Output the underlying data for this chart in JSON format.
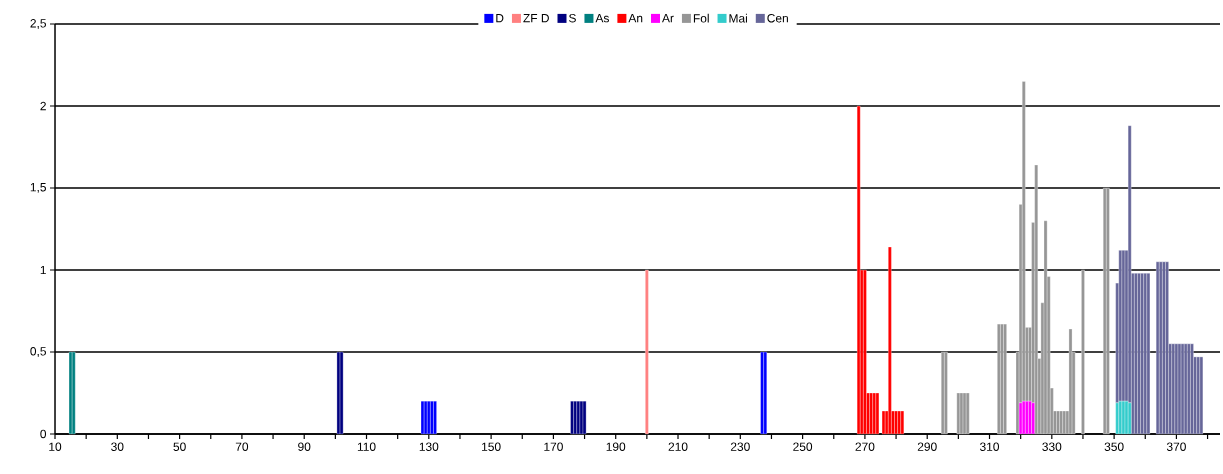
{
  "chart_data": {
    "type": "bar",
    "stacked": true,
    "grid": "y",
    "legend": "top",
    "xlim": [
      10,
      384
    ],
    "ylim": [
      0,
      2.5
    ],
    "xticks": [
      10,
      {
        "value": 20,
        "label": null
      },
      30,
      {
        "value": 40,
        "label": null
      },
      50,
      {
        "value": 60,
        "label": null
      },
      70,
      {
        "value": 80,
        "label": null
      },
      90,
      {
        "value": 100,
        "label": null
      },
      110,
      {
        "value": 120,
        "label": null
      },
      130,
      {
        "value": 140,
        "label": null
      },
      150,
      {
        "value": 160,
        "label": null
      },
      170,
      {
        "value": 180,
        "label": null
      },
      190,
      {
        "value": 200,
        "label": null
      },
      210,
      {
        "value": 220,
        "label": null
      },
      230,
      {
        "value": 240,
        "label": null
      },
      250,
      {
        "value": 260,
        "label": null
      },
      270,
      {
        "value": 280,
        "label": null
      },
      290,
      {
        "value": 300,
        "label": null
      },
      310,
      {
        "value": 320,
        "label": null
      },
      330,
      {
        "value": 340,
        "label": null
      },
      350,
      {
        "value": 360,
        "label": null
      },
      370,
      {
        "value": 380,
        "label": null
      }
    ],
    "yticks": [
      0,
      {
        "value": 0.5,
        "label": "0,5"
      },
      1,
      {
        "value": 1.5,
        "label": "1,5"
      },
      2,
      {
        "value": 2.5,
        "label": "2,5"
      }
    ],
    "x": [
      15,
      16,
      101,
      102,
      128,
      129,
      130,
      131,
      132,
      176,
      177,
      178,
      179,
      180,
      200,
      237,
      238,
      268,
      269,
      270,
      271,
      272,
      273,
      274,
      276,
      277,
      278,
      279,
      280,
      281,
      282,
      295,
      296,
      300,
      301,
      302,
      303,
      313,
      314,
      315,
      319,
      320,
      321,
      322,
      323,
      324,
      325,
      326,
      327,
      328,
      329,
      330,
      331,
      332,
      333,
      334,
      335,
      336,
      337,
      340,
      347,
      348,
      351,
      352,
      353,
      354,
      355,
      356,
      357,
      358,
      359,
      360,
      361,
      364,
      365,
      366,
      367,
      368,
      369,
      370,
      371,
      372,
      373,
      374,
      375,
      376,
      377,
      378
    ],
    "series": [
      {
        "name": "D",
        "color": "#0000ff",
        "values": [
          null,
          null,
          null,
          null,
          0.2,
          0.2,
          0.2,
          0.2,
          0.2,
          null,
          null,
          null,
          null,
          null,
          null,
          0.5,
          0.5,
          null,
          null,
          null,
          null,
          null,
          null,
          null,
          null,
          null,
          null,
          null,
          null,
          null,
          null,
          null,
          null,
          null,
          null,
          null,
          null,
          null,
          null,
          null,
          null,
          null,
          null,
          null,
          null,
          null,
          null,
          null,
          null,
          null,
          null,
          null,
          null,
          null,
          null,
          null,
          null,
          null,
          null,
          null,
          null,
          null,
          null,
          null,
          null,
          null,
          null,
          null,
          null,
          null,
          null,
          null,
          null,
          null,
          null,
          null,
          null,
          null,
          null,
          null,
          null,
          null,
          null,
          null,
          null,
          null,
          null,
          null
        ]
      },
      {
        "name": "ZF D",
        "color": "#ff8080",
        "values": [
          null,
          null,
          null,
          null,
          null,
          null,
          null,
          null,
          null,
          null,
          null,
          null,
          null,
          null,
          1,
          null,
          null,
          null,
          null,
          null,
          null,
          null,
          null,
          null,
          null,
          null,
          null,
          null,
          null,
          null,
          null,
          null,
          null,
          null,
          null,
          null,
          null,
          null,
          null,
          null,
          null,
          null,
          null,
          null,
          null,
          null,
          null,
          null,
          null,
          null,
          null,
          null,
          null,
          null,
          null,
          null,
          null,
          null,
          null,
          null,
          null,
          null,
          null,
          null,
          null,
          null,
          null,
          null,
          null,
          null,
          null,
          null,
          null,
          null,
          null,
          null,
          null,
          null,
          null,
          null,
          null,
          null,
          null,
          null,
          null,
          null,
          null,
          null
        ]
      },
      {
        "name": "S",
        "color": "#000080",
        "values": [
          null,
          null,
          0.5,
          0.5,
          null,
          null,
          null,
          null,
          null,
          0.2,
          0.2,
          0.2,
          0.2,
          0.2,
          null,
          null,
          null,
          null,
          null,
          null,
          null,
          null,
          null,
          null,
          null,
          null,
          null,
          null,
          null,
          null,
          null,
          null,
          null,
          null,
          null,
          null,
          null,
          null,
          null,
          null,
          null,
          null,
          null,
          null,
          null,
          null,
          null,
          null,
          null,
          null,
          null,
          null,
          null,
          null,
          null,
          null,
          null,
          null,
          null,
          null,
          null,
          null,
          null,
          null,
          null,
          null,
          null,
          null,
          null,
          null,
          null,
          null,
          null,
          null,
          null,
          null,
          null,
          null,
          null,
          null,
          null,
          null,
          null,
          null,
          null,
          null,
          null,
          null
        ]
      },
      {
        "name": "As",
        "color": "#008080",
        "values": [
          0.5,
          0.5,
          null,
          null,
          null,
          null,
          null,
          null,
          null,
          null,
          null,
          null,
          null,
          null,
          null,
          null,
          null,
          null,
          null,
          null,
          null,
          null,
          null,
          null,
          null,
          null,
          null,
          null,
          null,
          null,
          null,
          null,
          null,
          null,
          null,
          null,
          null,
          null,
          null,
          null,
          null,
          null,
          null,
          null,
          null,
          null,
          null,
          null,
          null,
          null,
          null,
          null,
          null,
          null,
          null,
          null,
          null,
          null,
          null,
          null,
          null,
          null,
          null,
          null,
          null,
          null,
          null,
          null,
          null,
          null,
          null,
          null,
          null,
          null,
          null,
          null,
          null,
          null,
          null,
          null,
          null,
          null,
          null,
          null,
          null,
          null,
          null,
          null
        ]
      },
      {
        "name": "An",
        "color": "#ff0000",
        "values": [
          null,
          null,
          null,
          null,
          null,
          null,
          null,
          null,
          null,
          null,
          null,
          null,
          null,
          null,
          null,
          null,
          null,
          2,
          1,
          1,
          0.25,
          0.25,
          0.25,
          0.25,
          0.14,
          0.14,
          1.14,
          0.14,
          0.14,
          0.14,
          0.14,
          null,
          null,
          null,
          null,
          null,
          null,
          null,
          null,
          null,
          null,
          null,
          null,
          null,
          null,
          null,
          null,
          null,
          null,
          null,
          null,
          null,
          null,
          null,
          null,
          null,
          null,
          null,
          null,
          null,
          null,
          null,
          null,
          null,
          null,
          null,
          null,
          null,
          null,
          null,
          null,
          null,
          null,
          null,
          null,
          null,
          null,
          null,
          null,
          null,
          null,
          null,
          null,
          null,
          null,
          null,
          null,
          null
        ]
      },
      {
        "name": "Ar",
        "color": "#ff00ff",
        "values": [
          null,
          null,
          null,
          null,
          null,
          null,
          null,
          null,
          null,
          null,
          null,
          null,
          null,
          null,
          null,
          null,
          null,
          null,
          null,
          null,
          null,
          null,
          null,
          null,
          null,
          null,
          null,
          null,
          null,
          null,
          null,
          null,
          null,
          null,
          null,
          null,
          null,
          null,
          null,
          null,
          null,
          0.19,
          0.2,
          0.2,
          0.2,
          0.19,
          null,
          null,
          null,
          null,
          null,
          null,
          null,
          null,
          null,
          null,
          null,
          null,
          null,
          null,
          null,
          null,
          null,
          null,
          null,
          null,
          null,
          null,
          null,
          null,
          null,
          null,
          null,
          null,
          null,
          null,
          null,
          null,
          null,
          null,
          null,
          null,
          null,
          null,
          null,
          null,
          null,
          null
        ]
      },
      {
        "name": "Fol",
        "color": "#969696",
        "values": [
          null,
          null,
          null,
          null,
          null,
          null,
          null,
          null,
          null,
          null,
          null,
          null,
          null,
          null,
          null,
          null,
          null,
          null,
          null,
          null,
          null,
          null,
          null,
          null,
          null,
          null,
          null,
          null,
          null,
          null,
          null,
          0.5,
          0.5,
          0.25,
          0.25,
          0.25,
          0.25,
          0.67,
          0.67,
          0.67,
          0.5,
          1.21,
          1.95,
          0.45,
          0.45,
          1.1,
          1.64,
          0.46,
          0.8,
          1.3,
          0.96,
          0.28,
          0.14,
          0.14,
          0.14,
          0.14,
          0.14,
          0.64,
          0.5,
          1,
          1.5,
          1.5,
          null,
          null,
          null,
          null,
          null,
          null,
          null,
          null,
          null,
          null,
          null,
          null,
          null,
          null,
          null,
          null,
          null,
          null,
          null,
          null,
          null,
          null,
          null,
          null,
          null,
          null
        ]
      },
      {
        "name": "Mai",
        "color": "#33cccc",
        "values": [
          null,
          null,
          null,
          null,
          null,
          null,
          null,
          null,
          null,
          null,
          null,
          null,
          null,
          null,
          null,
          null,
          null,
          null,
          null,
          null,
          null,
          null,
          null,
          null,
          null,
          null,
          null,
          null,
          null,
          null,
          null,
          null,
          null,
          null,
          null,
          null,
          null,
          null,
          null,
          null,
          null,
          null,
          null,
          null,
          null,
          null,
          null,
          null,
          null,
          null,
          null,
          null,
          null,
          null,
          null,
          null,
          null,
          null,
          null,
          null,
          null,
          null,
          0.19,
          0.2,
          0.2,
          0.2,
          0.19,
          null,
          null,
          null,
          null,
          null,
          null,
          null,
          null,
          null,
          null,
          null,
          null,
          null,
          null,
          null,
          null,
          null,
          null,
          null,
          null,
          null
        ]
      },
      {
        "name": "Cen",
        "color": "#666699",
        "values": [
          null,
          null,
          null,
          null,
          null,
          null,
          null,
          null,
          null,
          null,
          null,
          null,
          null,
          null,
          null,
          null,
          null,
          null,
          null,
          null,
          null,
          null,
          null,
          null,
          null,
          null,
          null,
          null,
          null,
          null,
          null,
          null,
          null,
          null,
          null,
          null,
          null,
          null,
          null,
          null,
          null,
          null,
          null,
          null,
          null,
          null,
          null,
          null,
          null,
          null,
          null,
          null,
          null,
          null,
          null,
          null,
          null,
          null,
          null,
          null,
          null,
          null,
          0.73,
          0.92,
          0.92,
          0.92,
          1.69,
          0.98,
          0.98,
          0.98,
          0.98,
          0.98,
          0.98,
          1.05,
          1.05,
          1.05,
          1.05,
          0.55,
          0.55,
          0.55,
          0.55,
          0.55,
          0.55,
          0.55,
          0.55,
          0.47,
          0.47,
          0.47
        ]
      }
    ]
  }
}
